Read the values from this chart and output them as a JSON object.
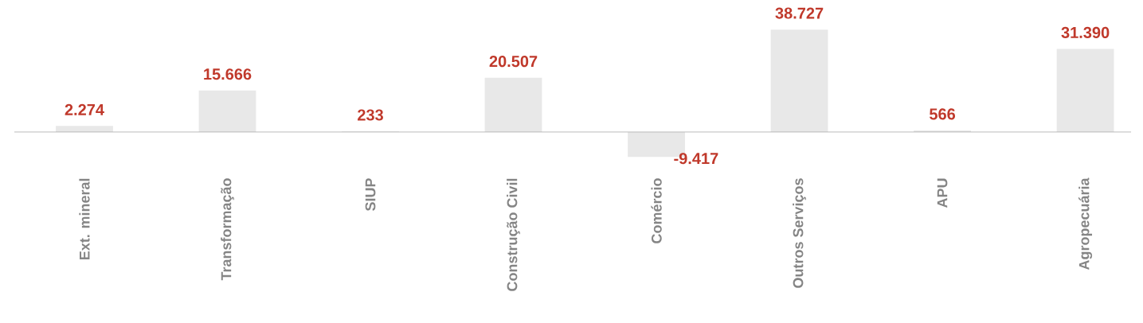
{
  "chart_data": {
    "type": "bar",
    "categories": [
      "Ext. mineral",
      "Transformação",
      "SIUP",
      "Construção Civil",
      "Comércio",
      "Outros Serviços",
      "APU",
      "Agropecuária"
    ],
    "values": [
      2274,
      15666,
      233,
      20507,
      -9417,
      38727,
      566,
      31390
    ],
    "value_labels": [
      "2.274",
      "15.666",
      "233",
      "20.507",
      "-9.417",
      "38.727",
      "566",
      "31.390"
    ],
    "color": "#e8e8e8"
  }
}
